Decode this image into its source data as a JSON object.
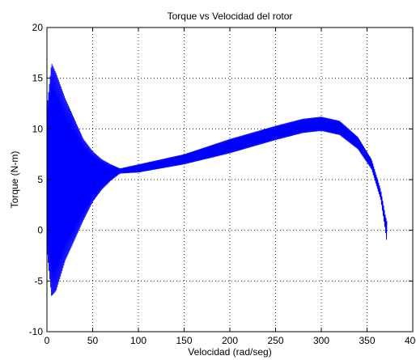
{
  "chart_data": {
    "type": "line",
    "title": "Torque vs Velocidad del rotor",
    "xlabel": "Velocidad (rad/seg)",
    "ylabel": "Torque (N-m)",
    "xlim": [
      0,
      400
    ],
    "ylim": [
      -10,
      20
    ],
    "xticks": [
      0,
      50,
      100,
      150,
      200,
      250,
      300,
      350,
      400
    ],
    "yticks": [
      -10,
      -5,
      0,
      5,
      10,
      15,
      20
    ],
    "grid": true,
    "line_color": "#0000ff",
    "series": [
      {
        "upper": {
          "x": [
            0,
            5,
            10,
            20,
            30,
            40,
            50,
            60,
            70,
            80,
            100,
            150,
            200,
            250,
            280,
            300,
            320,
            340,
            355,
            365,
            370,
            372
          ],
          "y": [
            12,
            16.5,
            15.5,
            13,
            11,
            9,
            7.8,
            7,
            6.5,
            6.1,
            6.5,
            7.5,
            9,
            10.3,
            11,
            11.2,
            10.8,
            9.2,
            7,
            4,
            1.5,
            0.8
          ]
        },
        "lower": {
          "x": [
            0,
            5,
            10,
            20,
            30,
            40,
            50,
            60,
            70,
            80,
            100,
            150,
            200,
            250,
            280,
            300,
            320,
            340,
            355,
            365,
            370,
            372
          ],
          "y": [
            -2,
            -6.5,
            -6,
            -3,
            -1,
            1,
            2.8,
            4,
            4.9,
            5.6,
            5.7,
            6.5,
            7.6,
            8.9,
            9.6,
            9.8,
            9.4,
            8,
            6,
            3,
            0,
            -1.5
          ]
        }
      }
    ]
  }
}
